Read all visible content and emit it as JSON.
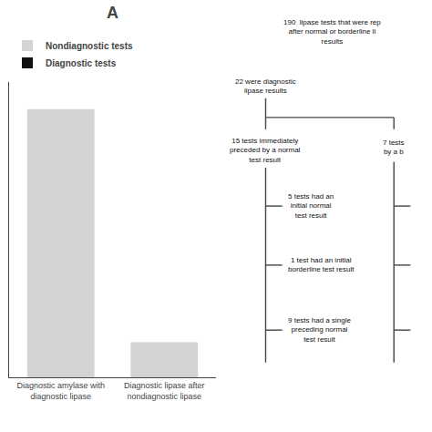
{
  "chart_data": {
    "type": "bar",
    "title": "A",
    "categories": [
      "Diagnostic amylase with\ndiagnostic lipase",
      "Diagnostic lipase after\nnondiagnostic lipase"
    ],
    "series": [
      {
        "name": "Nondiagnostic tests",
        "color": "#d3d3d3",
        "values": [
          168,
          22
        ]
      },
      {
        "name": "Diagnostic tests",
        "color": "#111111",
        "values": [
          null,
          null
        ]
      }
    ],
    "ylim": [
      0,
      185
    ],
    "grid": false,
    "tick_labels": "x",
    "annotations": [
      "190  lipase tests that were rep\nafter normal or borderline li\nresults",
      "22 were diagnostic\nlipase results",
      "15 tests immediately\npreceded by a normal\ntest result",
      "7 tests\nby a b",
      "5 tests had an\ninitial normal\ntest result",
      "1 test had an initial\nborderline test result",
      "9 tests had a single\npreceding normal\ntest result"
    ]
  }
}
